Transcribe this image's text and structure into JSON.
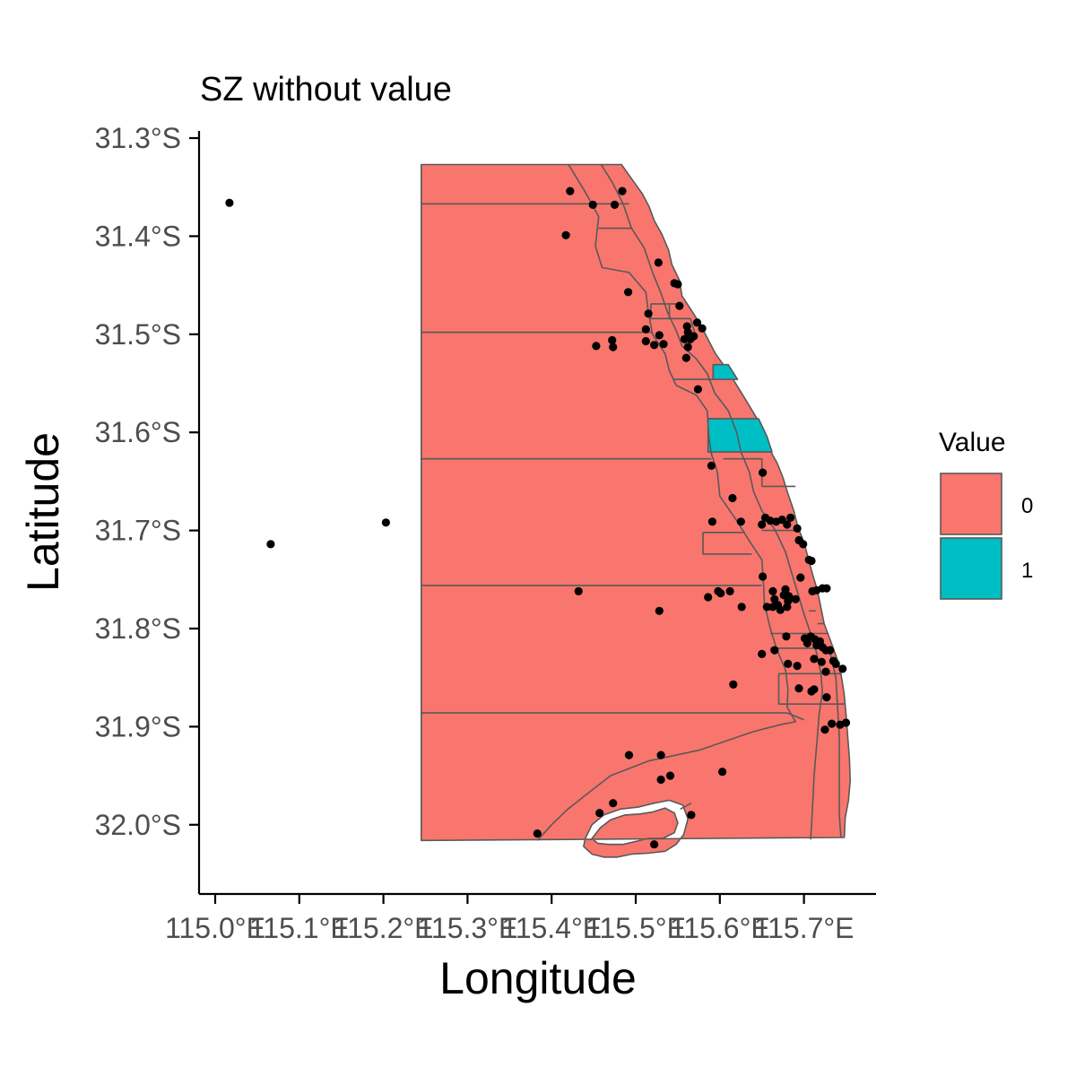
{
  "chart_data": {
    "type": "map",
    "title": "SZ without value",
    "xlabel": "Longitude",
    "ylabel": "Latitude",
    "x_ticks": [
      "115.0°E",
      "115.1°E",
      "115.2°E",
      "115.3°E",
      "115.4°E",
      "115.5°E",
      "115.6°E",
      "115.7°E"
    ],
    "y_ticks": [
      "31.3°S",
      "31.4°S",
      "31.5°S",
      "31.6°S",
      "31.7°S",
      "31.8°S",
      "31.9°S",
      "32.0°S"
    ],
    "xlim": [
      114.99,
      115.78
    ],
    "ylim": [
      -32.07,
      -31.28
    ],
    "grid": false,
    "legend": {
      "title": "Value",
      "position": "right",
      "entries": [
        {
          "label": "0",
          "color": "#F8766D"
        },
        {
          "label": "1",
          "color": "#00BFC4"
        }
      ]
    },
    "fill_values": {
      "zones_value_0": 0,
      "zones_value_1": 1
    },
    "points": [
      [
        115.017,
        -31.366
      ],
      [
        115.066,
        -31.714
      ],
      [
        115.203,
        -31.692
      ],
      [
        115.422,
        -31.354
      ],
      [
        115.449,
        -31.368
      ],
      [
        115.475,
        -31.368
      ],
      [
        115.484,
        -31.354
      ],
      [
        115.417,
        -31.399
      ],
      [
        115.527,
        -31.427
      ],
      [
        115.546,
        -31.448
      ],
      [
        115.55,
        -31.449
      ],
      [
        115.552,
        -31.471
      ],
      [
        115.491,
        -31.457
      ],
      [
        115.515,
        -31.479
      ],
      [
        115.512,
        -31.495
      ],
      [
        115.512,
        -31.507
      ],
      [
        115.522,
        -31.511
      ],
      [
        115.528,
        -31.501
      ],
      [
        115.533,
        -31.51
      ],
      [
        115.558,
        -31.505
      ],
      [
        115.562,
        -31.498
      ],
      [
        115.565,
        -31.505
      ],
      [
        115.569,
        -31.502
      ],
      [
        115.562,
        -31.513
      ],
      [
        115.56,
        -31.524
      ],
      [
        115.561,
        -31.492
      ],
      [
        115.573,
        -31.488
      ],
      [
        115.579,
        -31.494
      ],
      [
        115.453,
        -31.512
      ],
      [
        115.472,
        -31.506
      ],
      [
        115.473,
        -31.513
      ],
      [
        115.574,
        -31.556
      ],
      [
        115.59,
        -31.634
      ],
      [
        115.615,
        -31.667
      ],
      [
        115.651,
        -31.641
      ],
      [
        115.591,
        -31.691
      ],
      [
        115.625,
        -31.691
      ],
      [
        115.65,
        -31.694
      ],
      [
        115.654,
        -31.687
      ],
      [
        115.66,
        -31.69
      ],
      [
        115.667,
        -31.691
      ],
      [
        115.674,
        -31.689
      ],
      [
        115.68,
        -31.694
      ],
      [
        115.684,
        -31.687
      ],
      [
        115.692,
        -31.698
      ],
      [
        115.694,
        -31.71
      ],
      [
        115.699,
        -31.714
      ],
      [
        115.706,
        -31.73
      ],
      [
        115.709,
        -31.731
      ],
      [
        115.696,
        -31.748
      ],
      [
        115.651,
        -31.747
      ],
      [
        115.663,
        -31.762
      ],
      [
        115.665,
        -31.77
      ],
      [
        115.676,
        -31.766
      ],
      [
        115.678,
        -31.76
      ],
      [
        115.682,
        -31.767
      ],
      [
        115.69,
        -31.77
      ],
      [
        115.71,
        -31.762
      ],
      [
        115.715,
        -31.761
      ],
      [
        115.722,
        -31.759
      ],
      [
        115.727,
        -31.759
      ],
      [
        115.586,
        -31.768
      ],
      [
        115.598,
        -31.762
      ],
      [
        115.601,
        -31.764
      ],
      [
        115.612,
        -31.762
      ],
      [
        115.626,
        -31.778
      ],
      [
        115.656,
        -31.778
      ],
      [
        115.663,
        -31.778
      ],
      [
        115.669,
        -31.776
      ],
      [
        115.672,
        -31.781
      ],
      [
        115.68,
        -31.778
      ],
      [
        115.681,
        -31.772
      ],
      [
        115.432,
        -31.762
      ],
      [
        115.528,
        -31.782
      ],
      [
        115.701,
        -31.81
      ],
      [
        115.704,
        -31.815
      ],
      [
        115.708,
        -31.808
      ],
      [
        115.713,
        -31.811
      ],
      [
        115.715,
        -31.817
      ],
      [
        115.719,
        -31.813
      ],
      [
        115.722,
        -31.819
      ],
      [
        115.726,
        -31.822
      ],
      [
        115.731,
        -31.822
      ],
      [
        115.679,
        -31.808
      ],
      [
        115.665,
        -31.822
      ],
      [
        115.65,
        -31.826
      ],
      [
        115.681,
        -31.836
      ],
      [
        115.692,
        -31.838
      ],
      [
        115.712,
        -31.831
      ],
      [
        115.721,
        -31.834
      ],
      [
        115.726,
        -31.844
      ],
      [
        115.735,
        -31.833
      ],
      [
        115.738,
        -31.836
      ],
      [
        115.746,
        -31.841
      ],
      [
        115.616,
        -31.857
      ],
      [
        115.694,
        -31.861
      ],
      [
        115.709,
        -31.864
      ],
      [
        115.712,
        -31.862
      ],
      [
        115.727,
        -31.87
      ],
      [
        115.733,
        -31.897
      ],
      [
        115.743,
        -31.898
      ],
      [
        115.75,
        -31.896
      ],
      [
        115.725,
        -31.903
      ],
      [
        115.492,
        -31.929
      ],
      [
        115.53,
        -31.929
      ],
      [
        115.603,
        -31.946
      ],
      [
        115.53,
        -31.954
      ],
      [
        115.541,
        -31.95
      ],
      [
        115.473,
        -31.978
      ],
      [
        115.457,
        -31.988
      ],
      [
        115.566,
        -31.99
      ],
      [
        115.383,
        -32.009
      ],
      [
        115.522,
        -32.02
      ]
    ]
  }
}
